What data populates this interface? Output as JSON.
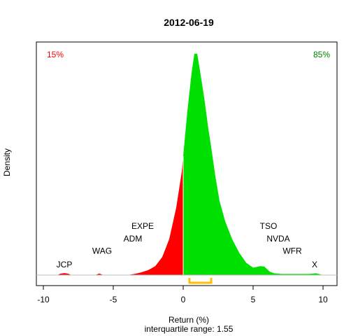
{
  "chart_data": {
    "type": "area",
    "title": "2012-06-19",
    "xlabel": "Return (%)",
    "subtitle": "interquartile range: 1.55",
    "ylabel": "Density",
    "xlim": [
      -10.5,
      11
    ],
    "ylim": [
      0,
      1.0
    ],
    "x_ticks": [
      -10,
      -5,
      0,
      5,
      10
    ],
    "x_tick_labels": [
      "-10",
      "-5",
      "0",
      "5",
      "10"
    ],
    "negative_share": "15%",
    "positive_share": "85%",
    "colors": {
      "negative": "#ff0000",
      "positive": "#00e000",
      "negative_label": "#ff0000",
      "positive_label": "#008000",
      "iqr_bracket": "#ffc000",
      "baseline": "#bfbfbf"
    },
    "interquartile": {
      "q1": 0.45,
      "q3": 2.0
    },
    "density_curve": [
      [
        -9.0,
        0.0
      ],
      [
        -8.8,
        0.006
      ],
      [
        -8.5,
        0.009
      ],
      [
        -8.2,
        0.006
      ],
      [
        -8.0,
        0.0
      ],
      [
        -6.3,
        0.0
      ],
      [
        -6.0,
        0.007
      ],
      [
        -5.7,
        0.0
      ],
      [
        -4.0,
        0.0
      ],
      [
        -3.5,
        0.005
      ],
      [
        -3.0,
        0.012
      ],
      [
        -2.5,
        0.022
      ],
      [
        -2.0,
        0.04
      ],
      [
        -1.5,
        0.08
      ],
      [
        -1.0,
        0.16
      ],
      [
        -0.5,
        0.3
      ],
      [
        -0.1,
        0.46
      ],
      [
        0.0,
        0.53
      ],
      [
        0.3,
        0.73
      ],
      [
        0.6,
        0.9
      ],
      [
        0.8,
        0.985
      ],
      [
        1.0,
        0.985
      ],
      [
        1.2,
        0.91
      ],
      [
        1.5,
        0.79
      ],
      [
        1.8,
        0.65
      ],
      [
        2.0,
        0.57
      ],
      [
        2.3,
        0.44
      ],
      [
        2.6,
        0.33
      ],
      [
        3.0,
        0.24
      ],
      [
        3.5,
        0.16
      ],
      [
        4.0,
        0.1
      ],
      [
        4.5,
        0.055
      ],
      [
        5.0,
        0.033
      ],
      [
        5.5,
        0.04
      ],
      [
        5.8,
        0.038
      ],
      [
        6.2,
        0.015
      ],
      [
        6.5,
        0.008
      ],
      [
        7.0,
        0.005
      ],
      [
        8.0,
        0.005
      ],
      [
        9.0,
        0.005
      ],
      [
        9.5,
        0.008
      ],
      [
        10.0,
        0.0
      ]
    ],
    "annotations": [
      {
        "text": "JCP",
        "x": -8.5,
        "y": 0.035
      },
      {
        "text": "WAG",
        "x": -5.8,
        "y": 0.095
      },
      {
        "text": "ADM",
        "x": -3.6,
        "y": 0.15
      },
      {
        "text": "EXPE",
        "x": -2.9,
        "y": 0.205
      },
      {
        "text": "TSO",
        "x": 6.1,
        "y": 0.205
      },
      {
        "text": "NVDA",
        "x": 6.8,
        "y": 0.15
      },
      {
        "text": "WFR",
        "x": 7.8,
        "y": 0.095
      },
      {
        "text": "X",
        "x": 9.4,
        "y": 0.035
      }
    ]
  }
}
